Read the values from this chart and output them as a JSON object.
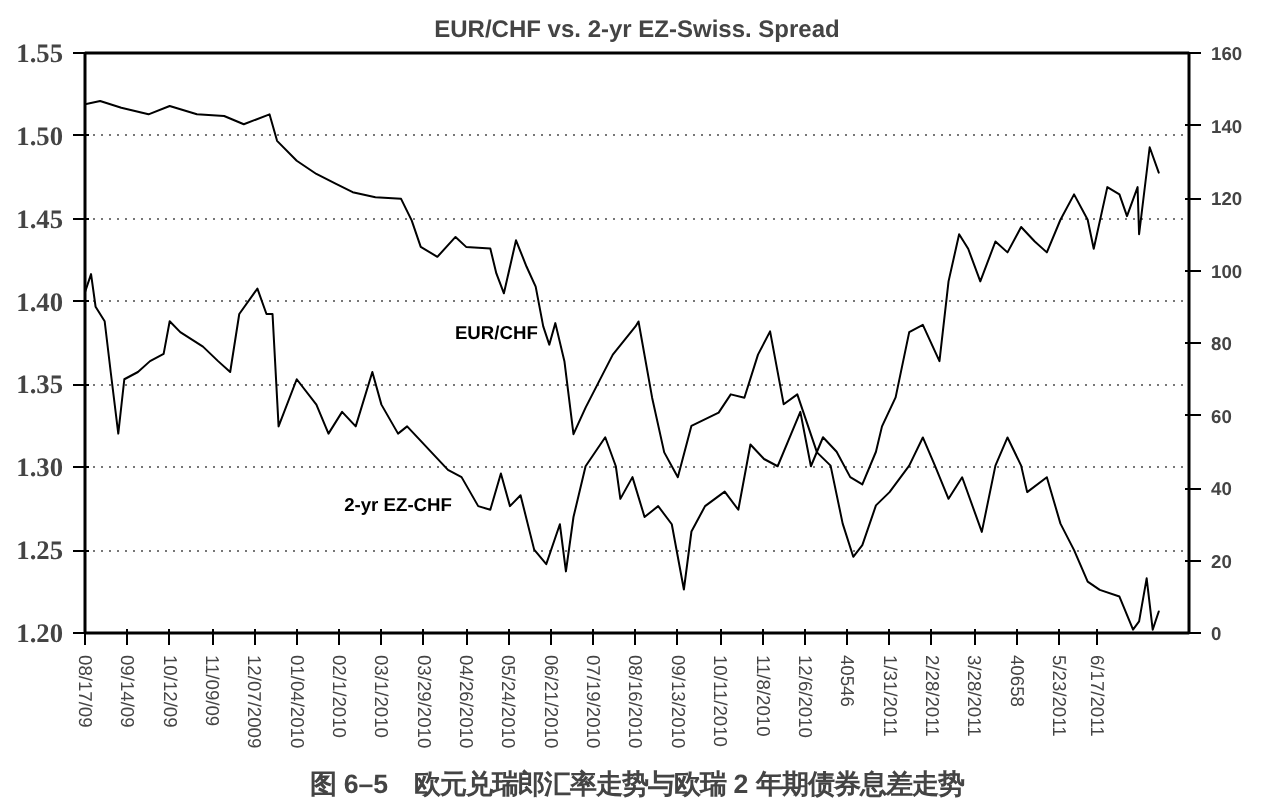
{
  "chart_data": {
    "type": "line",
    "title": "EUR/CHF vs. 2-yr EZ-Swiss. Spread",
    "annotations": [
      "图 6–5　欧元兑瑞郎汇率走势与欧瑞 2 年期债券息差走势"
    ],
    "xlim": [
      "2009-08-17",
      "2011-08-17"
    ],
    "xticks": [
      {
        "value": "2009-08-17",
        "label": "08/17/09"
      },
      {
        "value": "2009-09-14",
        "label": "09/14/09"
      },
      {
        "value": "2009-10-12",
        "label": "10/12/09"
      },
      {
        "value": "2009-11-09",
        "label": "11/09/09"
      },
      {
        "value": "2009-12-07",
        "label": "12/07/2009"
      },
      {
        "value": "2010-01-04",
        "label": "01/04/2010"
      },
      {
        "value": "2010-02-01",
        "label": "02/1/2010"
      },
      {
        "value": "2010-03-01",
        "label": "03/1/2010"
      },
      {
        "value": "2010-03-29",
        "label": "03/29/2010"
      },
      {
        "value": "2010-04-26",
        "label": "04/26/2010"
      },
      {
        "value": "2010-05-24",
        "label": "05/24/2010"
      },
      {
        "value": "2010-06-21",
        "label": "06/21/2010"
      },
      {
        "value": "2010-07-19",
        "label": "07/19/2010"
      },
      {
        "value": "2010-08-16",
        "label": "08/16/2010"
      },
      {
        "value": "2010-09-13",
        "label": "09/13/2010"
      },
      {
        "value": "2010-10-11",
        "label": "10/11/2010"
      },
      {
        "value": "2010-11-08",
        "label": "11/8/2010"
      },
      {
        "value": "2010-12-06",
        "label": "12/6/2010"
      },
      {
        "value": "2011-01-03",
        "label": "40546"
      },
      {
        "value": "2011-01-31",
        "label": "1/31/2011"
      },
      {
        "value": "2011-02-28",
        "label": "2/28/2011"
      },
      {
        "value": "2011-03-28",
        "label": "3/28/2011"
      },
      {
        "value": "2011-04-25",
        "label": "40658"
      },
      {
        "value": "2011-05-23",
        "label": "5/23/2011"
      },
      {
        "value": "2011-06-17",
        "label": "6/17/2011"
      }
    ],
    "ylim": [
      1.2,
      1.55
    ],
    "yticks": [
      {
        "value": 1.2,
        "label": "1.20"
      },
      {
        "value": 1.25,
        "label": "1.25"
      },
      {
        "value": 1.3,
        "label": "1.30"
      },
      {
        "value": 1.35,
        "label": "1.35"
      },
      {
        "value": 1.4,
        "label": "1.40"
      },
      {
        "value": 1.45,
        "label": "1.45"
      },
      {
        "value": 1.5,
        "label": "1.50"
      },
      {
        "value": 1.55,
        "label": "1.55"
      }
    ],
    "y2lim": [
      0,
      160
    ],
    "y2ticks": [
      0,
      20,
      40,
      60,
      80,
      100,
      120,
      140,
      160
    ],
    "grid": "y",
    "line_style": "solid",
    "series": [
      {
        "name": "EUR/CHF",
        "color": "#000000",
        "x": [
          "2009-08-17",
          "2009-08-27",
          "2009-09-10",
          "2009-09-28",
          "2009-10-12",
          "2009-10-30",
          "2009-11-17",
          "2009-11-30",
          "2009-12-17",
          "2009-12-22",
          "2010-01-04",
          "2010-01-17",
          "2010-01-30",
          "2010-02-10",
          "2010-02-25",
          "2010-03-14",
          "2010-03-21",
          "2010-03-27",
          "2010-04-07",
          "2010-04-19",
          "2010-04-26",
          "2010-05-12",
          "2010-05-16",
          "2010-05-21",
          "2010-05-29",
          "2010-06-05",
          "2010-06-11",
          "2010-06-16",
          "2010-06-20",
          "2010-06-24",
          "2010-06-30",
          "2010-07-06",
          "2010-07-14",
          "2010-07-23",
          "2010-08-01",
          "2010-08-16",
          "2010-08-18",
          "2010-08-27",
          "2010-09-04",
          "2010-09-13",
          "2010-09-22",
          "2010-10-10",
          "2010-10-18",
          "2010-10-27",
          "2010-11-05",
          "2010-11-13",
          "2010-11-22",
          "2010-12-01",
          "2010-12-14",
          "2010-12-23",
          "2010-12-31",
          "2011-01-07",
          "2011-01-13",
          "2011-01-22",
          "2011-01-31",
          "2011-02-13",
          "2011-02-22",
          "2011-03-02",
          "2011-03-11",
          "2011-03-20",
          "2011-04-02",
          "2011-04-11",
          "2011-04-19",
          "2011-04-28",
          "2011-05-02",
          "2011-05-15",
          "2011-05-24",
          "2011-06-02",
          "2011-06-11",
          "2011-06-19",
          "2011-07-02",
          "2011-07-11",
          "2011-07-15",
          "2011-07-20",
          "2011-07-24",
          "2011-07-28"
        ],
        "values": [
          1.519,
          1.521,
          1.517,
          1.513,
          1.518,
          1.513,
          1.512,
          1.507,
          1.513,
          1.497,
          1.485,
          1.477,
          1.471,
          1.466,
          1.463,
          1.462,
          1.449,
          1.433,
          1.427,
          1.439,
          1.433,
          1.432,
          1.417,
          1.405,
          1.437,
          1.421,
          1.409,
          1.385,
          1.374,
          1.387,
          1.364,
          1.32,
          1.336,
          1.352,
          1.368,
          1.385,
          1.388,
          1.342,
          1.309,
          1.294,
          1.325,
          1.333,
          1.344,
          1.342,
          1.368,
          1.382,
          1.338,
          1.344,
          1.309,
          1.301,
          1.266,
          1.246,
          1.253,
          1.277,
          1.285,
          1.301,
          1.318,
          1.301,
          1.281,
          1.294,
          1.261,
          1.301,
          1.318,
          1.301,
          1.285,
          1.294,
          1.266,
          1.25,
          1.231,
          1.226,
          1.222,
          1.202,
          1.207,
          1.233,
          1.202,
          1.213
        ]
      },
      {
        "name": "2-yr EZ-CHF",
        "color": "#000000",
        "axis": "y2",
        "x": [
          "2009-08-17",
          "2009-08-21",
          "2009-08-24",
          "2009-08-30",
          "2009-09-03",
          "2009-09-08",
          "2009-09-12",
          "2009-09-21",
          "2009-09-29",
          "2009-10-08",
          "2009-10-12",
          "2009-10-19",
          "2009-11-03",
          "2009-11-13",
          "2009-11-21",
          "2009-11-27",
          "2009-12-09",
          "2009-12-15",
          "2009-12-19",
          "2009-12-23",
          "2010-01-04",
          "2010-01-17",
          "2010-01-25",
          "2010-02-03",
          "2010-02-12",
          "2010-02-23",
          "2010-03-01",
          "2010-03-12",
          "2010-03-18",
          "2010-04-14",
          "2010-04-23",
          "2010-05-04",
          "2010-05-12",
          "2010-05-19",
          "2010-05-25",
          "2010-06-01",
          "2010-06-10",
          "2010-06-18",
          "2010-06-27",
          "2010-07-01",
          "2010-07-06",
          "2010-07-14",
          "2010-07-27",
          "2010-08-03",
          "2010-08-06",
          "2010-08-14",
          "2010-08-22",
          "2010-08-31",
          "2010-09-09",
          "2010-09-17",
          "2010-09-22",
          "2010-10-01",
          "2010-10-14",
          "2010-10-23",
          "2010-10-31",
          "2010-11-09",
          "2010-11-18",
          "2010-11-27",
          "2010-12-03",
          "2010-12-10",
          "2010-12-18",
          "2010-12-27",
          "2011-01-05",
          "2011-01-13",
          "2011-01-22",
          "2011-01-26",
          "2011-02-04",
          "2011-02-13",
          "2011-02-22",
          "2011-03-05",
          "2011-03-11",
          "2011-03-18",
          "2011-03-24",
          "2011-04-01",
          "2011-04-11",
          "2011-04-19",
          "2011-04-28",
          "2011-05-07",
          "2011-05-15",
          "2011-05-24",
          "2011-06-02",
          "2011-06-11",
          "2011-06-15",
          "2011-06-24",
          "2011-07-02",
          "2011-07-07",
          "2011-07-14",
          "2011-07-15",
          "2011-07-22",
          "2011-07-28"
        ],
        "values": [
          94,
          99,
          90,
          86,
          72,
          55,
          70,
          72,
          75,
          77,
          86,
          83,
          79,
          75,
          72,
          88,
          95,
          88,
          88,
          57,
          70,
          63,
          55,
          61,
          57,
          72,
          63,
          55,
          57,
          45,
          43,
          35,
          34,
          44,
          35,
          38,
          23,
          19,
          30,
          17,
          32,
          46,
          54,
          46,
          37,
          43,
          32,
          35,
          30,
          12,
          28,
          35,
          39,
          34,
          52,
          48,
          46,
          55,
          61,
          46,
          54,
          50,
          43,
          41,
          50,
          57,
          65,
          83,
          85,
          75,
          97,
          110,
          106,
          97,
          108,
          105,
          112,
          108,
          105,
          114,
          121,
          114,
          106,
          123,
          121,
          115,
          123,
          110,
          134,
          127
        ]
      }
    ]
  }
}
